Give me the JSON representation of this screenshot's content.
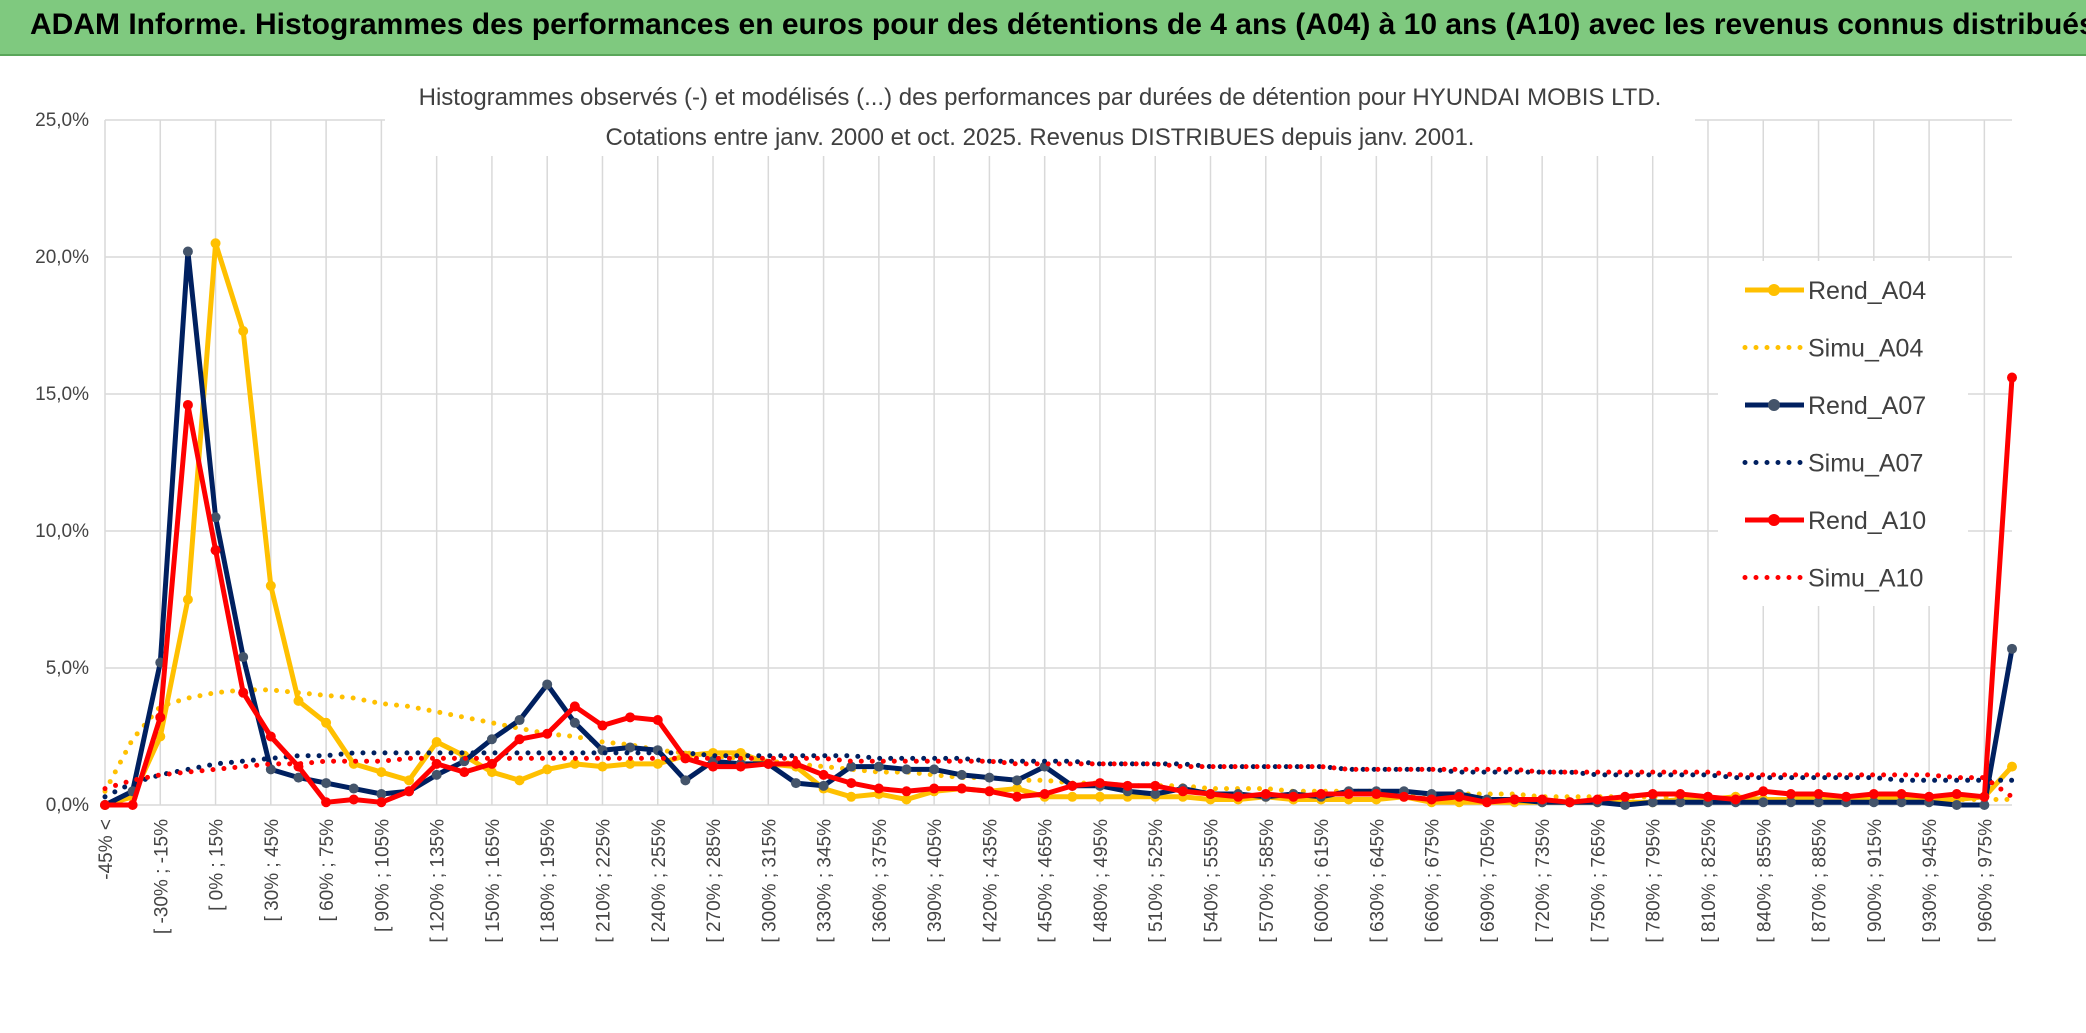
{
  "banner": {
    "title": "ADAM Informe. Histogrammes des performances en euros pour des détentions de 4 ans (A04) à 10 ans (A10) avec les revenus connus distribués"
  },
  "chart_data": {
    "type": "line",
    "title": "Histogrammes observés (-) et modélisés (...) des performances par durées de détention pour HYUNDAI MOBIS LTD.",
    "subtitle": "Cotations entre janv. 2000 et oct. 2025. Revenus DISTRIBUES depuis janv. 2001.",
    "ylim": [
      0,
      25
    ],
    "yticks": [
      "0,0%",
      "5,0%",
      "10,0%",
      "15,0%",
      "20,0%",
      "25,0%"
    ],
    "grid": true,
    "legend_position": "right",
    "x_tick_labels": [
      "-45% <",
      "[ -30% ; -15%",
      "[ 0% ; 15%",
      "[ 30% ; 45%",
      "[ 60% ; 75%",
      "[ 90% ; 105%",
      "[ 120% ; 135%",
      "[ 150% ; 165%",
      "[ 180% ; 195%",
      "[ 210% ; 225%",
      "[ 240% ; 255%",
      "[ 270% ; 285%",
      "[ 300% ; 315%",
      "[ 330% ; 345%",
      "[ 360% ; 375%",
      "[ 390% ; 405%",
      "[ 420% ; 435%",
      "[ 450% ; 465%",
      "[ 480% ; 495%",
      "[ 510% ; 525%",
      "[ 540% ; 555%",
      "[ 570% ; 585%",
      "[ 600% ; 615%",
      "[ 630% ; 645%",
      "[ 660% ; 675%",
      "[ 690% ; 705%",
      "[ 720% ; 735%",
      "[ 750% ; 765%",
      "[ 780% ; 795%",
      "[ 810% ; 825%",
      "[ 840% ; 855%",
      "[ 870% ; 885%",
      "[ 900% ; 915%",
      "[ 930% ; 945%",
      "[ 960% ; 975%"
    ],
    "series": [
      {
        "name": "Rend_A04",
        "color": "#FFC000",
        "style": "solid",
        "markers": true,
        "values": [
          0.0,
          0.3,
          2.5,
          7.5,
          20.5,
          17.3,
          8.0,
          3.8,
          3.0,
          1.5,
          1.2,
          0.9,
          2.3,
          1.8,
          1.2,
          0.9,
          1.3,
          1.5,
          1.4,
          1.5,
          1.5,
          1.8,
          1.9,
          1.9,
          1.5,
          1.4,
          0.6,
          0.3,
          0.4,
          0.2,
          0.5,
          0.6,
          0.5,
          0.6,
          0.3,
          0.3,
          0.3,
          0.3,
          0.3,
          0.3,
          0.2,
          0.2,
          0.3,
          0.2,
          0.2,
          0.2,
          0.2,
          0.3,
          0.1,
          0.1,
          0.1,
          0.1,
          0.1,
          0.1,
          0.1,
          0.1,
          0.1,
          0.2,
          0.2,
          0.3,
          0.2,
          0.2,
          0.3,
          0.2,
          0.2,
          0.3,
          0.2,
          0.2,
          0.3,
          1.4
        ]
      },
      {
        "name": "Simu_A04",
        "color": "#FFC000",
        "style": "dotted",
        "markers": false,
        "values": [
          0.5,
          2.4,
          3.6,
          3.9,
          4.1,
          4.2,
          4.2,
          4.1,
          4.0,
          3.9,
          3.7,
          3.6,
          3.4,
          3.2,
          3.0,
          2.8,
          2.6,
          2.5,
          2.3,
          2.2,
          2.0,
          1.9,
          1.8,
          1.7,
          1.6,
          1.5,
          1.4,
          1.3,
          1.2,
          1.2,
          1.1,
          1.0,
          1.0,
          0.9,
          0.9,
          0.8,
          0.8,
          0.7,
          0.7,
          0.7,
          0.6,
          0.6,
          0.6,
          0.5,
          0.5,
          0.5,
          0.5,
          0.4,
          0.4,
          0.4,
          0.4,
          0.4,
          0.3,
          0.3,
          0.3,
          0.3,
          0.3,
          0.3,
          0.3,
          0.2,
          0.2,
          0.2,
          0.2,
          0.2,
          0.2,
          0.2,
          0.2,
          0.2,
          0.2,
          0.2
        ]
      },
      {
        "name": "Rend_A07",
        "color": "#002060",
        "style": "solid",
        "markers": true,
        "values": [
          0.0,
          0.5,
          5.2,
          20.2,
          10.5,
          5.4,
          1.3,
          1.0,
          0.8,
          0.6,
          0.4,
          0.5,
          1.1,
          1.6,
          2.4,
          3.1,
          4.4,
          3.0,
          2.0,
          2.1,
          2.0,
          0.9,
          1.6,
          1.5,
          1.5,
          0.8,
          0.7,
          1.4,
          1.4,
          1.3,
          1.3,
          1.1,
          1.0,
          0.9,
          1.4,
          0.7,
          0.7,
          0.5,
          0.4,
          0.6,
          0.4,
          0.4,
          0.3,
          0.4,
          0.3,
          0.5,
          0.5,
          0.5,
          0.4,
          0.4,
          0.2,
          0.2,
          0.1,
          0.1,
          0.1,
          0.0,
          0.1,
          0.1,
          0.1,
          0.1,
          0.1,
          0.1,
          0.1,
          0.1,
          0.1,
          0.1,
          0.1,
          0.0,
          0.0,
          5.7
        ]
      },
      {
        "name": "Simu_A07",
        "color": "#002060",
        "style": "dotted",
        "markers": false,
        "values": [
          0.3,
          0.8,
          1.1,
          1.3,
          1.5,
          1.6,
          1.7,
          1.8,
          1.8,
          1.9,
          1.9,
          1.9,
          1.9,
          1.9,
          1.9,
          1.9,
          1.9,
          1.9,
          1.9,
          1.9,
          1.9,
          1.9,
          1.8,
          1.8,
          1.8,
          1.8,
          1.8,
          1.8,
          1.7,
          1.7,
          1.7,
          1.7,
          1.6,
          1.6,
          1.6,
          1.6,
          1.5,
          1.5,
          1.5,
          1.5,
          1.4,
          1.4,
          1.4,
          1.4,
          1.4,
          1.3,
          1.3,
          1.3,
          1.3,
          1.2,
          1.2,
          1.2,
          1.2,
          1.2,
          1.1,
          1.1,
          1.1,
          1.1,
          1.1,
          1.0,
          1.0,
          1.0,
          1.0,
          1.0,
          1.0,
          0.9,
          0.9,
          0.9,
          0.9,
          0.9
        ]
      },
      {
        "name": "Rend_A10",
        "color": "#FF0000",
        "style": "solid",
        "markers": true,
        "values": [
          0.0,
          0.0,
          3.2,
          14.6,
          9.3,
          4.1,
          2.5,
          1.4,
          0.1,
          0.2,
          0.1,
          0.5,
          1.5,
          1.2,
          1.5,
          2.4,
          2.6,
          3.6,
          2.9,
          3.2,
          3.1,
          1.7,
          1.4,
          1.4,
          1.5,
          1.5,
          1.1,
          0.8,
          0.6,
          0.5,
          0.6,
          0.6,
          0.5,
          0.3,
          0.4,
          0.7,
          0.8,
          0.7,
          0.7,
          0.5,
          0.4,
          0.3,
          0.4,
          0.3,
          0.4,
          0.4,
          0.4,
          0.3,
          0.2,
          0.3,
          0.1,
          0.2,
          0.2,
          0.1,
          0.2,
          0.3,
          0.4,
          0.4,
          0.3,
          0.2,
          0.5,
          0.4,
          0.4,
          0.3,
          0.4,
          0.4,
          0.3,
          0.4,
          0.3,
          15.6
        ]
      },
      {
        "name": "Simu_A10",
        "color": "#FF0000",
        "style": "dotted",
        "markers": false,
        "values": [
          0.6,
          0.9,
          1.1,
          1.2,
          1.3,
          1.4,
          1.5,
          1.5,
          1.6,
          1.6,
          1.6,
          1.7,
          1.7,
          1.7,
          1.7,
          1.7,
          1.7,
          1.7,
          1.7,
          1.7,
          1.7,
          1.7,
          1.7,
          1.7,
          1.7,
          1.7,
          1.7,
          1.6,
          1.6,
          1.6,
          1.6,
          1.6,
          1.6,
          1.5,
          1.5,
          1.5,
          1.5,
          1.5,
          1.5,
          1.4,
          1.4,
          1.4,
          1.4,
          1.4,
          1.4,
          1.3,
          1.3,
          1.3,
          1.3,
          1.3,
          1.3,
          1.3,
          1.2,
          1.2,
          1.2,
          1.2,
          1.2,
          1.2,
          1.2,
          1.1,
          1.1,
          1.1,
          1.1,
          1.1,
          1.1,
          1.1,
          1.1,
          1.0,
          1.0,
          0.3
        ]
      }
    ]
  }
}
